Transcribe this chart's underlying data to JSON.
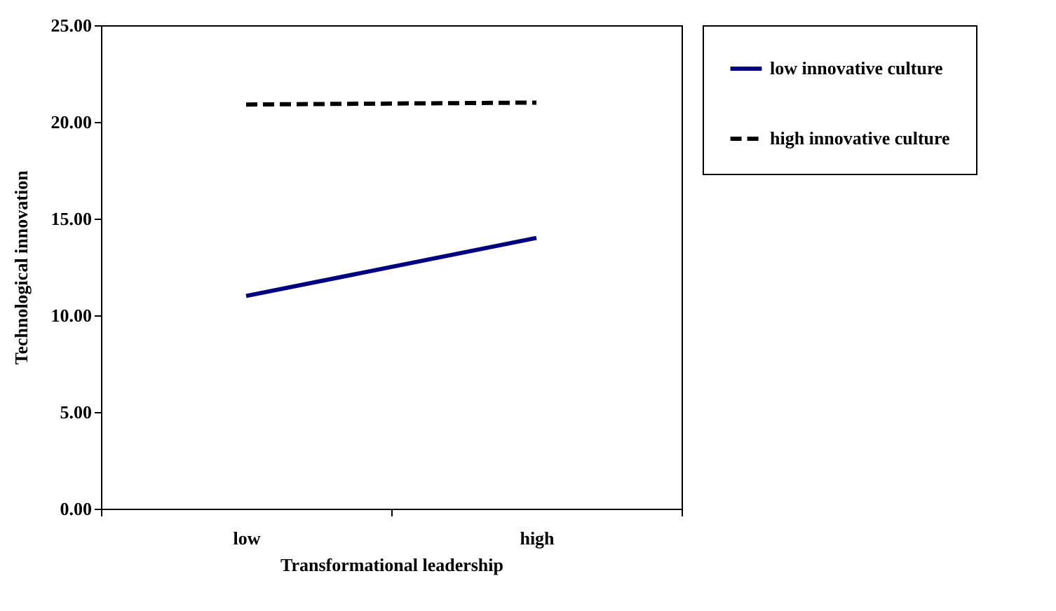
{
  "chart_data": {
    "type": "line",
    "xlabel": "Transformational leadership",
    "ylabel": "Technological innovation",
    "categories": [
      "low",
      "high"
    ],
    "series": [
      {
        "name": "low innovative culture",
        "color": "#000080",
        "line_style": "solid",
        "values": [
          11.0,
          14.0
        ]
      },
      {
        "name": "high innovative culture",
        "color": "#000000",
        "line_style": "dashed",
        "values": [
          20.9,
          21.0
        ]
      }
    ],
    "ylim": [
      0,
      25
    ],
    "yticks": [
      {
        "value": 0,
        "label": "0.00"
      },
      {
        "value": 5,
        "label": "5.00"
      },
      {
        "value": 10,
        "label": "10.00"
      },
      {
        "value": 15,
        "label": "15.00"
      },
      {
        "value": 20,
        "label": "20.00"
      },
      {
        "value": 25,
        "label": "25.00"
      }
    ],
    "grid": false,
    "legend": "right",
    "marker": "none"
  }
}
